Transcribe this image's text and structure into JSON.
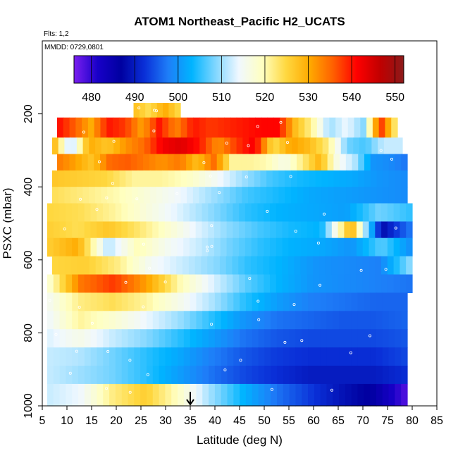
{
  "chart_data": {
    "type": "heatmap",
    "title": "ATOM1 Northeast_Pacific H2_UCATS",
    "flights_label": "Flts: 1,2",
    "date_label": "MMDD: 0729,0801",
    "xlabel": "Latitude (deg N)",
    "ylabel": "PSXC (mbar)",
    "xlim": [
      5,
      85
    ],
    "ylim": [
      1000,
      0
    ],
    "x_ticks": [
      "5",
      "10",
      "15",
      "20",
      "25",
      "30",
      "35",
      "40",
      "45",
      "50",
      "55",
      "60",
      "65",
      "70",
      "75",
      "80",
      "85"
    ],
    "y_ticks": [
      "200",
      "400",
      "600",
      "800",
      "1000"
    ],
    "colorbar": {
      "range": [
        476,
        552
      ],
      "ticks": [
        "480",
        "490",
        "500",
        "510",
        "520",
        "530",
        "540",
        "550"
      ],
      "stops": [
        "#7b1ff0",
        "#1800c8",
        "#0000a0",
        "#0a30d8",
        "#1e7ef8",
        "#00b4ff",
        "#7fd6ff",
        "#f0f8ff",
        "#ffffc0",
        "#ffd840",
        "#ffaa00",
        "#ff6000",
        "#ff0000",
        "#c00000",
        "#8b1a1a"
      ]
    },
    "marker": {
      "latitude": 35
    },
    "layers": [
      {
        "p_top": 170,
        "p_bot": 210,
        "lat_start": 23.5,
        "lat_end": 33,
        "values": [
          528,
          524,
          530,
          524
        ]
      },
      {
        "p_top": 210,
        "p_bot": 265,
        "lat_start": 8,
        "lat_end": 77,
        "values": [
          541,
          536,
          530,
          540,
          538,
          531,
          540,
          533,
          540,
          538,
          539,
          540,
          541,
          541,
          528,
          521,
          510,
          514,
          509,
          539,
          520
        ]
      },
      {
        "p_top": 265,
        "p_bot": 310,
        "lat_start": 7,
        "lat_end": 78,
        "values": [
          531,
          510,
          530,
          527,
          532,
          535,
          542,
          544,
          540,
          532,
          538,
          542,
          524,
          531,
          528,
          522,
          508,
          506,
          512,
          512
        ]
      },
      {
        "p_top": 310,
        "p_bot": 355,
        "lat_start": 8,
        "lat_end": 79,
        "values": [
          534,
          531,
          527,
          535,
          536,
          534,
          532,
          534,
          528,
          535,
          521,
          521,
          520,
          516,
          522,
          529,
          516,
          511,
          500,
          499,
          497
        ]
      },
      {
        "p_top": 355,
        "p_bot": 400,
        "lat_start": 7,
        "lat_end": 79,
        "values": [
          527,
          526,
          525,
          521,
          521,
          519,
          515,
          510,
          506,
          504,
          503,
          502,
          500,
          499
        ]
      },
      {
        "p_top": 400,
        "p_bot": 445,
        "lat_start": 7,
        "lat_end": 79,
        "values": [
          524,
          522,
          520,
          517,
          514,
          510,
          506,
          504,
          502,
          501,
          500,
          499
        ]
      },
      {
        "p_top": 445,
        "p_bot": 495,
        "lat_start": 6,
        "lat_end": 80,
        "values": [
          525,
          524,
          521,
          517,
          513,
          509,
          505,
          503,
          502,
          501,
          508,
          505
        ]
      },
      {
        "p_top": 495,
        "p_bot": 540,
        "lat_start": 6,
        "lat_end": 80,
        "values": [
          526,
          524,
          527,
          523,
          518,
          513,
          509,
          506,
          504,
          503,
          530,
          488,
          498
        ]
      },
      {
        "p_top": 540,
        "p_bot": 590,
        "lat_start": 6,
        "lat_end": 80,
        "values": [
          526,
          530,
          511,
          520,
          515,
          512,
          508,
          505,
          503,
          502,
          500,
          507,
          499
        ]
      },
      {
        "p_top": 590,
        "p_bot": 640,
        "lat_start": 7,
        "lat_end": 80,
        "values": [
          525,
          526,
          522,
          515,
          512,
          509,
          505,
          503,
          500,
          499,
          498,
          510
        ]
      },
      {
        "p_top": 640,
        "p_bot": 690,
        "lat_start": 6,
        "lat_end": 80,
        "values": [
          517,
          534,
          538,
          531,
          520,
          513,
          507,
          503,
          500,
          499,
          498,
          497
        ]
      },
      {
        "p_top": 690,
        "p_bot": 740,
        "lat_start": 6,
        "lat_end": 79,
        "values": [
          515,
          522,
          524,
          521,
          516,
          511,
          505,
          501,
          498,
          497,
          496,
          496
        ]
      },
      {
        "p_top": 740,
        "p_bot": 790,
        "lat_start": 6,
        "lat_end": 79,
        "values": [
          514,
          521,
          518,
          514,
          510,
          505,
          500,
          497,
          496,
          495,
          495,
          496
        ]
      },
      {
        "p_top": 790,
        "p_bot": 840,
        "lat_start": 6,
        "lat_end": 79,
        "values": [
          513,
          516,
          512,
          509,
          505,
          501,
          497,
          495,
          494,
          494,
          494,
          495
        ]
      },
      {
        "p_top": 840,
        "p_bot": 890,
        "lat_start": 6,
        "lat_end": 79,
        "values": [
          512,
          511,
          508,
          505,
          502,
          498,
          495,
          493,
          492,
          492,
          492,
          494
        ]
      },
      {
        "p_top": 890,
        "p_bot": 940,
        "lat_start": 6,
        "lat_end": 79,
        "values": [
          512,
          510,
          508,
          505,
          501,
          497,
          494,
          492,
          490,
          490,
          490,
          492
        ]
      },
      {
        "p_top": 940,
        "p_bot": 1000,
        "lat_start": 6,
        "lat_end": 79,
        "values": [
          512,
          514,
          522,
          526,
          519,
          510,
          503,
          497,
          493,
          489,
          486,
          478
        ]
      }
    ]
  }
}
